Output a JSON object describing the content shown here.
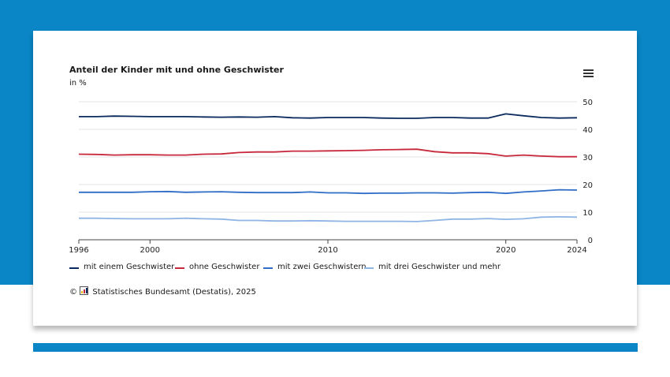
{
  "source": {
    "copyright_symbol": "©",
    "text": "Statistisches Bundesamt (Destatis), 2025"
  },
  "menu": {
    "icon": "hamburger-menu-icon"
  },
  "chart_data": {
    "type": "line",
    "title": "Anteil der Kinder mit und ohne Geschwister",
    "subtitle": "in %",
    "xlim": [
      1996,
      2024
    ],
    "ylim": [
      0,
      50
    ],
    "x_ticks": [
      1996,
      2000,
      2010,
      2020,
      2024
    ],
    "y_ticks": [
      0,
      10,
      20,
      30,
      40,
      50
    ],
    "grid": true,
    "legend_position": "bottom-left",
    "x": [
      1996,
      1997,
      1998,
      1999,
      2000,
      2001,
      2002,
      2003,
      2004,
      2005,
      2006,
      2007,
      2008,
      2009,
      2010,
      2011,
      2012,
      2013,
      2014,
      2015,
      2016,
      2017,
      2018,
      2019,
      2020,
      2021,
      2022,
      2023,
      2024
    ],
    "series": [
      {
        "name": "mit einem Geschwister",
        "color": "#0b2a5e",
        "values": [
          44.6,
          44.6,
          44.8,
          44.7,
          44.6,
          44.6,
          44.6,
          44.5,
          44.4,
          44.5,
          44.4,
          44.6,
          44.2,
          44.1,
          44.3,
          44.3,
          44.3,
          44.1,
          44.0,
          44.0,
          44.3,
          44.3,
          44.1,
          44.1,
          45.6,
          44.9,
          44.3,
          44.1,
          44.2
        ]
      },
      {
        "name": "ohne Geschwister",
        "color": "#c8283c",
        "values": [
          31.0,
          30.9,
          30.7,
          30.8,
          30.8,
          30.7,
          30.7,
          31.0,
          31.1,
          31.6,
          31.8,
          31.8,
          32.1,
          32.1,
          32.2,
          32.3,
          32.4,
          32.6,
          32.7,
          32.8,
          31.9,
          31.5,
          31.5,
          31.2,
          30.3,
          30.7,
          30.3,
          30.1,
          30.1
        ]
      },
      {
        "name": "mit zwei Geschwistern",
        "color": "#2f6dc7",
        "values": [
          17.2,
          17.2,
          17.2,
          17.2,
          17.4,
          17.5,
          17.2,
          17.3,
          17.4,
          17.2,
          17.1,
          17.1,
          17.1,
          17.3,
          17.0,
          17.0,
          16.8,
          16.9,
          16.9,
          17.0,
          17.0,
          16.9,
          17.1,
          17.2,
          16.8,
          17.3,
          17.7,
          18.1,
          18.0
        ]
      },
      {
        "name": "mit drei Geschwister und mehr",
        "color": "#8fb5e5",
        "values": [
          7.8,
          7.8,
          7.7,
          7.6,
          7.6,
          7.6,
          7.8,
          7.6,
          7.5,
          7.0,
          7.0,
          6.8,
          6.8,
          6.9,
          6.8,
          6.7,
          6.7,
          6.7,
          6.7,
          6.6,
          7.0,
          7.5,
          7.5,
          7.7,
          7.4,
          7.6,
          8.2,
          8.3,
          8.2
        ]
      }
    ]
  }
}
